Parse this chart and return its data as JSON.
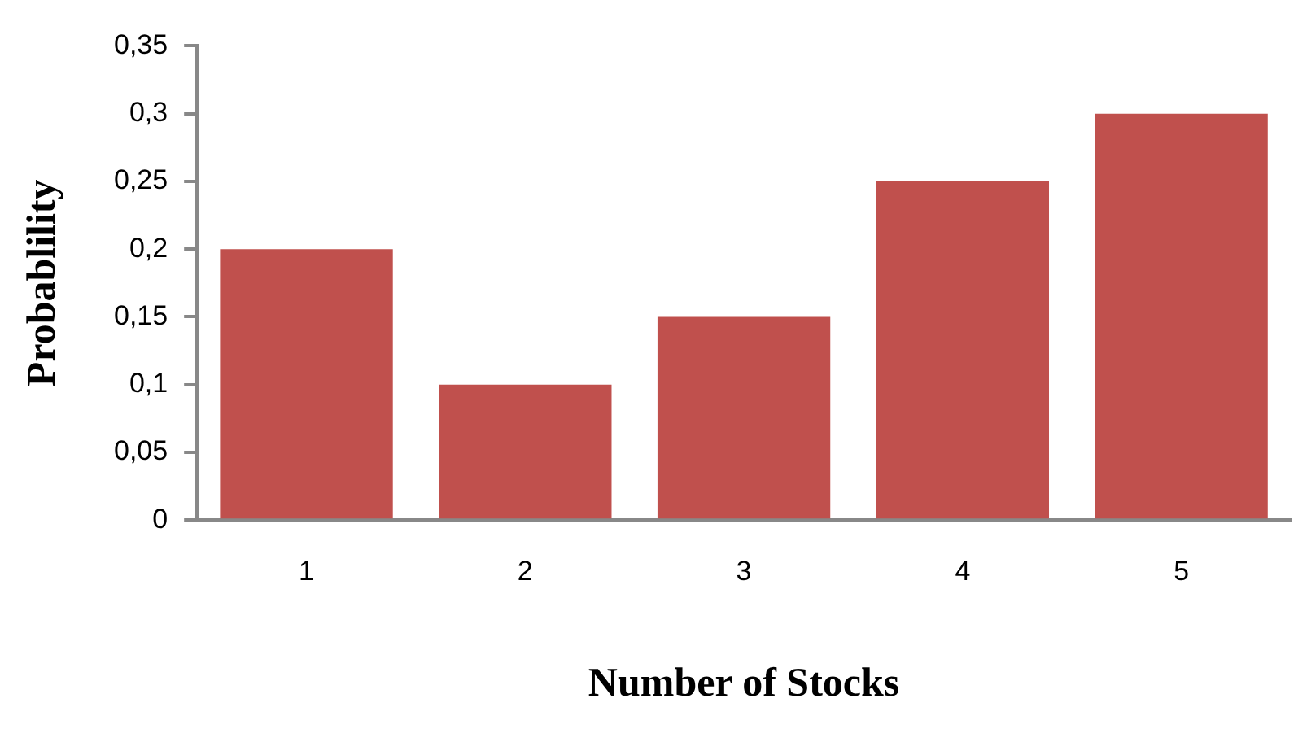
{
  "chart_data": {
    "type": "bar",
    "xlabel": "Number of Stocks",
    "ylabel": "Probablility",
    "categories": [
      "1",
      "2",
      "3",
      "4",
      "5"
    ],
    "values": [
      0.2,
      0.1,
      0.15,
      0.25,
      0.3
    ],
    "color": "#c0504d",
    "ylim": [
      0,
      0.35
    ],
    "yticks": [
      {
        "value": 0,
        "label": "0"
      },
      {
        "value": 0.05,
        "label": "0,05"
      },
      {
        "value": 0.1,
        "label": "0,1"
      },
      {
        "value": 0.15,
        "label": "0,15"
      },
      {
        "value": 0.2,
        "label": "0,2"
      },
      {
        "value": 0.25,
        "label": "0,25"
      },
      {
        "value": 0.3,
        "label": "0,3"
      },
      {
        "value": 0.35,
        "label": "0,35"
      }
    ],
    "grid": false,
    "legend": false
  }
}
